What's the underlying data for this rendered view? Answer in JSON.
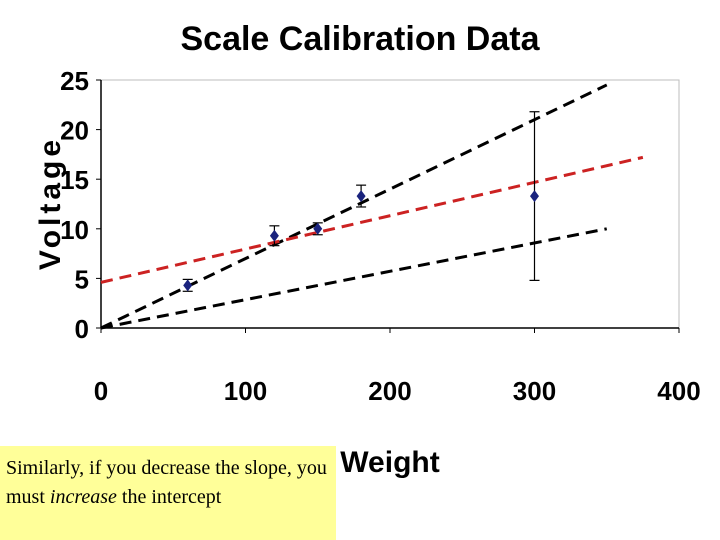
{
  "chart_data": {
    "type": "scatter",
    "title": "Scale Calibration Data",
    "xlabel": "Weight",
    "ylabel": "Voltage",
    "xlim": [
      0,
      400
    ],
    "ylim": [
      0,
      25
    ],
    "xticks": [
      0,
      100,
      200,
      300,
      400
    ],
    "yticks": [
      0,
      5,
      10,
      15,
      20,
      25
    ],
    "grid": false,
    "points": [
      {
        "x": 60,
        "y": 4.3,
        "err": 0.6
      },
      {
        "x": 120,
        "y": 9.3,
        "err": 1.0
      },
      {
        "x": 150,
        "y": 10.0,
        "err": 0.6
      },
      {
        "x": 180,
        "y": 13.3,
        "err": 1.1
      },
      {
        "x": 300,
        "y": 13.3,
        "err": 8.5
      }
    ],
    "fit_lines": [
      {
        "name": "steep-fit",
        "color": "#000000",
        "x0": 0,
        "y0": 0,
        "x1": 350,
        "y1": 24.5
      },
      {
        "name": "shallow-fit",
        "color": "#000000",
        "x0": 0,
        "y0": 0,
        "x1": 350,
        "y1": 10
      },
      {
        "name": "reduced-slope-fit",
        "color": "#cc2222",
        "x0": 0,
        "y0": 4.6,
        "x1": 375,
        "y1": 17.2
      }
    ],
    "point_color": "#1a237e"
  },
  "note": {
    "text_before": "Similarly, if you decrease the slope, you must ",
    "emphasis": "increase",
    "text_after": " the intercept"
  }
}
